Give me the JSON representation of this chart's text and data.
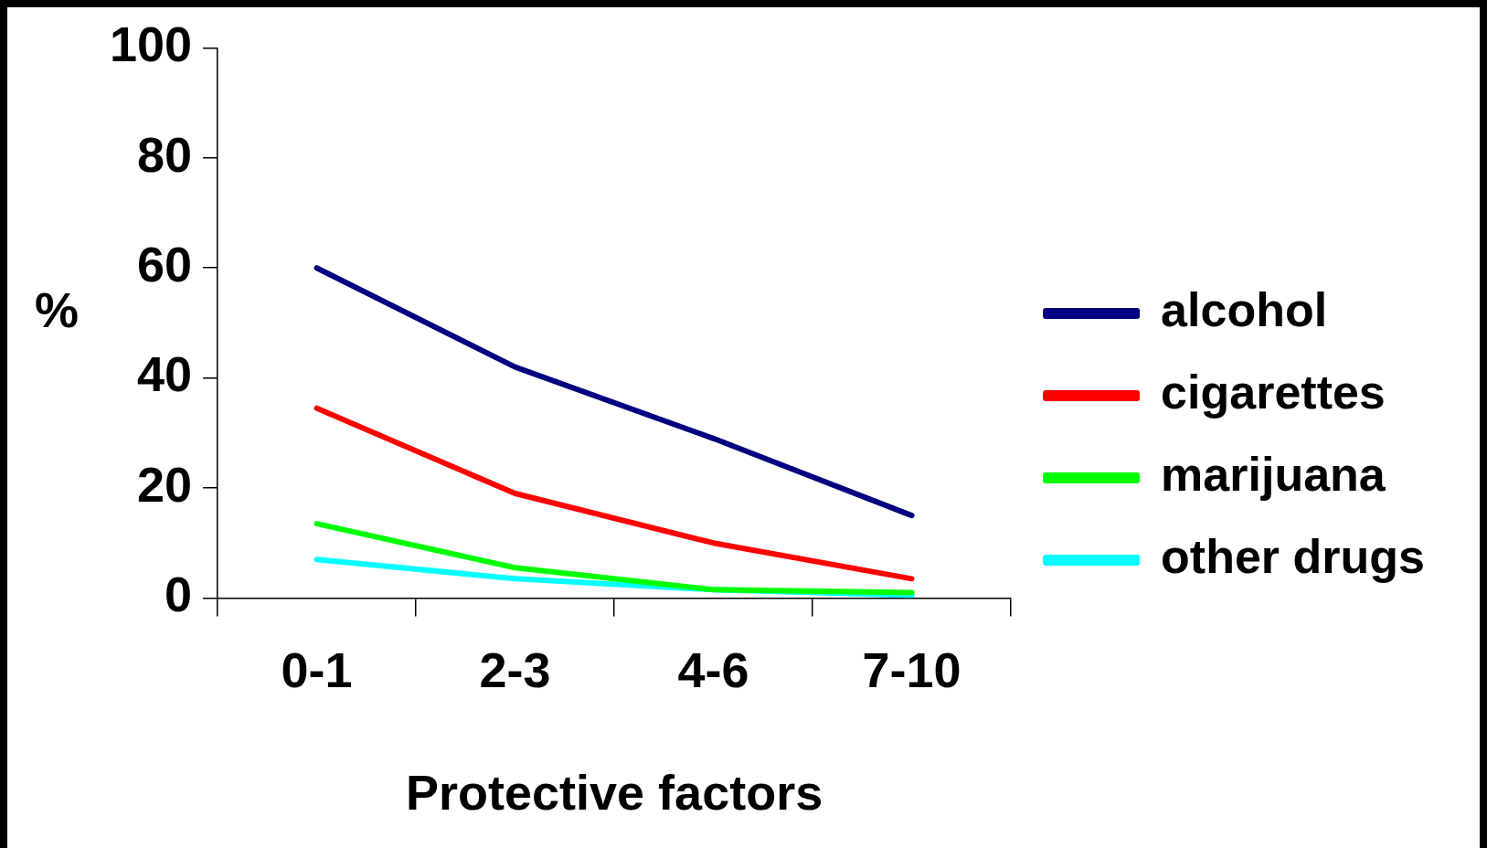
{
  "chart_data": {
    "type": "line",
    "xlabel": "Protective factors",
    "ylabel": "%",
    "categories": [
      "0-1",
      "2-3",
      "4-6",
      "7-10"
    ],
    "series": [
      {
        "name": "alcohol",
        "color": "#000080",
        "values": [
          60,
          42,
          29,
          15
        ]
      },
      {
        "name": "cigarettes",
        "color": "#ff0000",
        "values": [
          34.5,
          19,
          10,
          3.5
        ]
      },
      {
        "name": "marijuana",
        "color": "#00ff00",
        "values": [
          13.5,
          5.5,
          1.5,
          1
        ]
      },
      {
        "name": "other drugs",
        "color": "#00ffff",
        "values": [
          7,
          3.5,
          1.5,
          0.5
        ]
      }
    ],
    "ylim": [
      0,
      100
    ],
    "yticks": [
      0,
      20,
      40,
      60,
      80,
      100
    ],
    "grid": false,
    "legend": "right",
    "marker": "none",
    "line_style": "solid"
  }
}
